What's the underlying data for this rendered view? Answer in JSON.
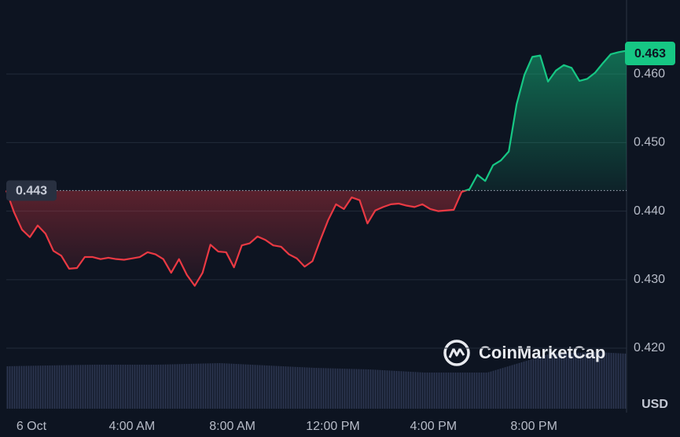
{
  "chart_data": {
    "type": "line",
    "x": [
      -1,
      -0.6875,
      -0.375,
      -0.0625,
      0.25,
      0.5625,
      0.875,
      1.1875,
      1.5,
      1.8125,
      2.125,
      2.4375,
      2.75,
      3.0625,
      3.375,
      3.6875,
      4,
      4.3125,
      4.625,
      4.9375,
      5.25,
      5.5625,
      5.875,
      6.1875,
      6.5,
      6.8125,
      7.125,
      7.4375,
      7.75,
      8.0625,
      8.375,
      8.6875,
      9,
      9.3125,
      9.625,
      9.9375,
      10.25,
      10.5625,
      10.875,
      11.1875,
      11.5,
      11.8125,
      12.125,
      12.4375,
      12.75,
      13.0625,
      13.375,
      13.6875,
      14,
      14.3125,
      14.625,
      14.9375,
      15.25,
      15.5625,
      15.875,
      16.1875,
      16.5,
      16.8125,
      17.125,
      17.4375,
      17.75,
      18.0625,
      18.375,
      18.6875,
      19,
      19.3125,
      19.625,
      19.9375,
      20.25,
      20.5625,
      20.875,
      21.1875,
      21.5,
      21.8125,
      22.125,
      22.4375,
      22.75,
      23.0625,
      23.375,
      23.6875
    ],
    "values": [
      0.443,
      0.4398,
      0.4373,
      0.4362,
      0.4379,
      0.4367,
      0.4342,
      0.4335,
      0.4316,
      0.4317,
      0.4333,
      0.4333,
      0.433,
      0.4332,
      0.433,
      0.4329,
      0.4331,
      0.4333,
      0.434,
      0.4337,
      0.433,
      0.431,
      0.433,
      0.4307,
      0.4291,
      0.431,
      0.4351,
      0.4341,
      0.434,
      0.4318,
      0.435,
      0.4353,
      0.4363,
      0.4358,
      0.435,
      0.4348,
      0.4337,
      0.4331,
      0.4319,
      0.4327,
      0.4358,
      0.4387,
      0.441,
      0.4403,
      0.442,
      0.4416,
      0.4382,
      0.4401,
      0.4406,
      0.441,
      0.4411,
      0.4408,
      0.4406,
      0.441,
      0.4403,
      0.44,
      0.4401,
      0.4402,
      0.4428,
      0.4432,
      0.4453,
      0.4444,
      0.4467,
      0.4474,
      0.4487,
      0.4556,
      0.4599,
      0.4625,
      0.4627,
      0.4589,
      0.4605,
      0.4613,
      0.4609,
      0.459,
      0.4593,
      0.4602,
      0.4616,
      0.4629,
      0.4632,
      0.4634
    ],
    "up_color": "#16c784",
    "down_color": "#ea3943",
    "reference": 0.443,
    "current_price": 0.463,
    "xlim": [
      -1,
      23.6875
    ],
    "xticks": [
      {
        "value": 0,
        "label": "6 Oct"
      },
      {
        "value": 4,
        "label": "4:00 AM"
      },
      {
        "value": 8,
        "label": "8:00 AM"
      },
      {
        "value": 12,
        "label": "12:00 PM"
      },
      {
        "value": 16,
        "label": "4:00 PM"
      },
      {
        "value": 20,
        "label": "8:00 PM"
      }
    ],
    "ylim": [
      0.4106,
      0.4708
    ],
    "yticks": [
      {
        "value": 0.42,
        "label": "0.420"
      },
      {
        "value": 0.43,
        "label": "0.430"
      },
      {
        "value": 0.44,
        "label": "0.440"
      },
      {
        "value": 0.45,
        "label": "0.450"
      },
      {
        "value": 0.46,
        "label": "0.460"
      }
    ],
    "grid": true,
    "currency": "USD",
    "watermark": "CoinMarketCap"
  }
}
